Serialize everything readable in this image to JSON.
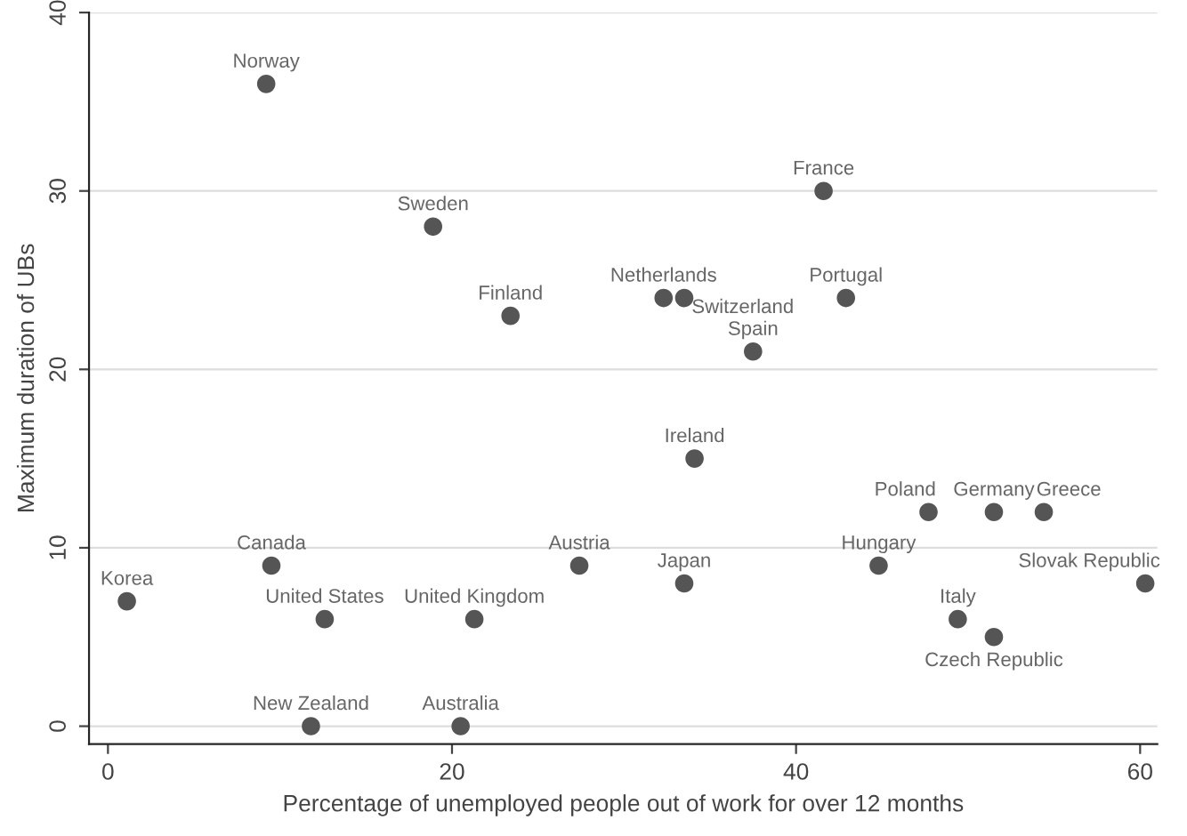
{
  "chart_data": {
    "type": "scatter",
    "xlabel": "Percentage of unemployed people out of work for over 12 months",
    "ylabel": "Maximum duration of UBs",
    "x": [
      9.2,
      18.9,
      23.4,
      32.3,
      33.5,
      41.6,
      42.9,
      37.5,
      34.1,
      47.7,
      51.5,
      54.4,
      9.5,
      27.4,
      44.8,
      33.5,
      60.3,
      1.1,
      12.6,
      21.3,
      49.4,
      51.5,
      11.8,
      20.5
    ],
    "values": [
      36,
      28,
      23,
      24,
      24,
      30,
      24,
      21,
      15,
      12,
      12,
      12,
      9,
      9,
      9,
      8,
      8,
      7,
      6,
      6,
      6,
      5,
      0,
      0
    ],
    "color": "#555555",
    "marker": "circle",
    "annotations": [
      {
        "text": "Norway",
        "x": 9.2,
        "y": 36
      },
      {
        "text": "Sweden",
        "x": 18.9,
        "y": 28
      },
      {
        "text": "Finland",
        "x": 23.4,
        "y": 23
      },
      {
        "text": "Netherlands",
        "x": 32.3,
        "y": 24
      },
      {
        "text": "Switzerland",
        "x": 33.5,
        "y": 24
      },
      {
        "text": "France",
        "x": 41.6,
        "y": 30
      },
      {
        "text": "Portugal",
        "x": 42.9,
        "y": 24
      },
      {
        "text": "Spain",
        "x": 37.5,
        "y": 21
      },
      {
        "text": "Ireland",
        "x": 34.1,
        "y": 15
      },
      {
        "text": "Poland",
        "x": 47.7,
        "y": 12
      },
      {
        "text": "Germany",
        "x": 51.5,
        "y": 12
      },
      {
        "text": "Greece",
        "x": 54.4,
        "y": 12
      },
      {
        "text": "Canada",
        "x": 9.5,
        "y": 9
      },
      {
        "text": "Austria",
        "x": 27.4,
        "y": 9
      },
      {
        "text": "Hungary",
        "x": 44.8,
        "y": 9
      },
      {
        "text": "Japan",
        "x": 33.5,
        "y": 8
      },
      {
        "text": "Slovak Republic",
        "x": 60.3,
        "y": 8
      },
      {
        "text": "Korea",
        "x": 1.1,
        "y": 7
      },
      {
        "text": "United States",
        "x": 12.6,
        "y": 6
      },
      {
        "text": "United Kingdom",
        "x": 21.3,
        "y": 6
      },
      {
        "text": "Italy",
        "x": 49.4,
        "y": 6
      },
      {
        "text": "Czech Republic",
        "x": 51.5,
        "y": 5
      },
      {
        "text": "New Zealand",
        "x": 11.8,
        "y": 0
      },
      {
        "text": "Australia",
        "x": 20.5,
        "y": 0
      }
    ],
    "xlim": [
      -1.1,
      61
    ],
    "ylim": [
      -1,
      40
    ],
    "xticks": [
      0,
      20,
      40,
      60
    ],
    "yticks": [
      0,
      10,
      20,
      30,
      40
    ],
    "grid": "y",
    "legend": false
  }
}
